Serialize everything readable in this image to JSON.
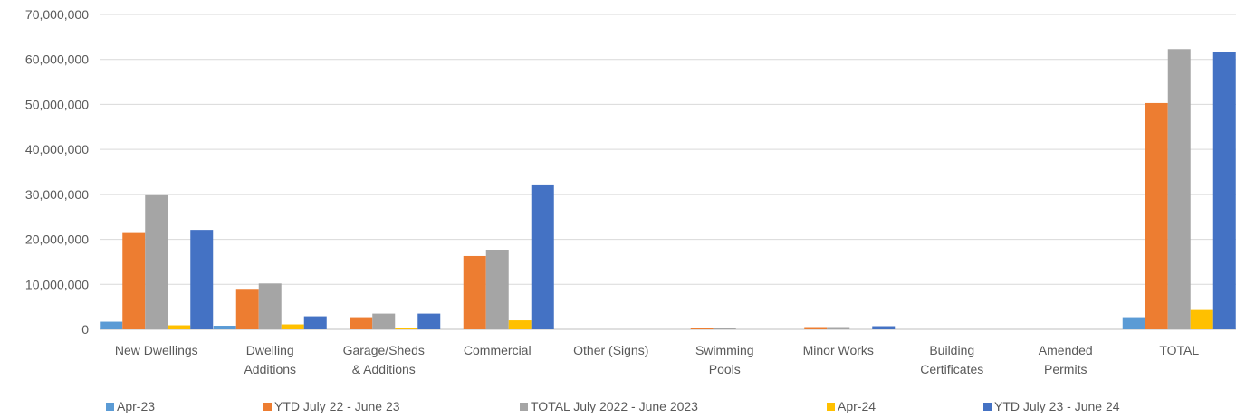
{
  "chart_data": {
    "type": "bar",
    "title": "",
    "xlabel": "",
    "ylabel": "",
    "ylim": [
      0,
      70000000
    ],
    "yticks": [
      "0",
      "10,000,000",
      "20,000,000",
      "30,000,000",
      "40,000,000",
      "50,000,000",
      "60,000,000",
      "70,000,000"
    ],
    "grid": true,
    "legend_position": "bottom",
    "categories": [
      [
        "New Dwellings"
      ],
      [
        "Dwelling",
        "Additions"
      ],
      [
        "Garage/Sheds",
        "& Additions"
      ],
      [
        "Commercial"
      ],
      [
        "Other (Signs)"
      ],
      [
        "Swimming",
        "Pools"
      ],
      [
        "Minor Works"
      ],
      [
        "Building",
        "Certificates"
      ],
      [
        "Amended",
        "Permits"
      ],
      [
        "TOTAL"
      ]
    ],
    "series": [
      {
        "name": "Apr-23",
        "color": "#5B9BD5",
        "values": [
          1700000,
          800000,
          0,
          0,
          0,
          0,
          0,
          0,
          0,
          2700000
        ]
      },
      {
        "name": "YTD July 22 - June 23",
        "color": "#ED7D31",
        "values": [
          21600000,
          9000000,
          2700000,
          16300000,
          0,
          200000,
          500000,
          0,
          0,
          50300000
        ]
      },
      {
        "name": "TOTAL July 2022 - June 2023",
        "color": "#A5A5A5",
        "values": [
          30000000,
          10200000,
          3500000,
          17700000,
          0,
          200000,
          500000,
          0,
          0,
          62300000
        ]
      },
      {
        "name": "Apr-24",
        "color": "#FFC000",
        "values": [
          900000,
          1100000,
          200000,
          2000000,
          0,
          0,
          0,
          0,
          0,
          4300000
        ]
      },
      {
        "name": "YTD July 23 - June 24",
        "color": "#4472C4",
        "values": [
          22100000,
          2900000,
          3500000,
          32200000,
          0,
          0,
          700000,
          0,
          0,
          61600000
        ]
      }
    ]
  }
}
